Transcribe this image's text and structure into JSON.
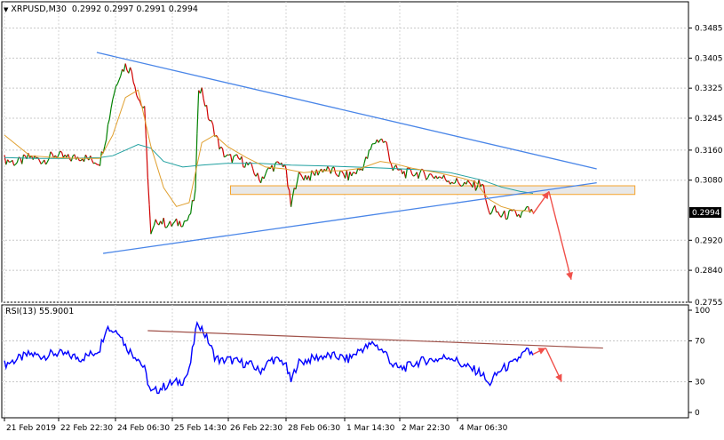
{
  "header": {
    "symbol_timeframe": "XRPUSD,M30",
    "ohlc": "0.2992 0.2997 0.2991 0.2994"
  },
  "rsi_header": {
    "label": "RSI(13) 55.9001"
  },
  "chart_data": [
    {
      "type": "candlestick",
      "title": "XRPUSD,M30",
      "ylim": [
        0.2755,
        0.3555
      ],
      "y_ticks": [
        "0.3485",
        "0.3405",
        "0.3325",
        "0.3245",
        "0.3160",
        "0.3080",
        "0.2994",
        "0.2920",
        "0.2840",
        "0.2755"
      ],
      "last_price": "0.2994",
      "grid": true,
      "colors": {
        "up": "#008000",
        "down": "#d00000",
        "ma_fast": "#e0a030",
        "ma_slow": "#20a0a0",
        "trendline": "#4a86e8",
        "forecast": "#f0504a",
        "zone": "#f6a32a"
      },
      "price_path": [
        [
          0,
          0.3135
        ],
        [
          4,
          0.3126
        ],
        [
          8,
          0.3142
        ],
        [
          12,
          0.3132
        ],
        [
          16,
          0.3148
        ],
        [
          20,
          0.3137
        ],
        [
          24,
          0.3143
        ],
        [
          28,
          0.3132
        ],
        [
          30,
          0.313
        ],
        [
          32,
          0.32
        ],
        [
          34,
          0.33
        ],
        [
          36,
          0.336
        ],
        [
          38,
          0.3385
        ],
        [
          40,
          0.337
        ],
        [
          42,
          0.33
        ],
        [
          44,
          0.3265
        ],
        [
          46,
          0.293
        ],
        [
          48,
          0.2975
        ],
        [
          52,
          0.296
        ],
        [
          56,
          0.297
        ],
        [
          58,
          0.2975
        ],
        [
          60,
          0.305
        ],
        [
          61,
          0.333
        ],
        [
          62,
          0.332
        ],
        [
          64,
          0.325
        ],
        [
          66,
          0.321
        ],
        [
          68,
          0.316
        ],
        [
          70,
          0.314
        ],
        [
          74,
          0.3135
        ],
        [
          78,
          0.311
        ],
        [
          80,
          0.308
        ],
        [
          84,
          0.3115
        ],
        [
          88,
          0.3125
        ],
        [
          90,
          0.301
        ],
        [
          92,
          0.309
        ],
        [
          96,
          0.309
        ],
        [
          100,
          0.311
        ],
        [
          104,
          0.31
        ],
        [
          108,
          0.309
        ],
        [
          112,
          0.311
        ],
        [
          114,
          0.314
        ],
        [
          116,
          0.318
        ],
        [
          118,
          0.319
        ],
        [
          120,
          0.3175
        ],
        [
          122,
          0.311
        ],
        [
          124,
          0.3105
        ],
        [
          126,
          0.3098
        ],
        [
          128,
          0.31
        ],
        [
          132,
          0.3095
        ],
        [
          136,
          0.309
        ],
        [
          140,
          0.308
        ],
        [
          144,
          0.307
        ],
        [
          148,
          0.3065
        ],
        [
          150,
          0.3075
        ],
        [
          152,
          0.2995
        ],
        [
          154,
          0.3
        ],
        [
          156,
          0.2985
        ],
        [
          160,
          0.299
        ],
        [
          162,
          0.2985
        ],
        [
          164,
          0.3
        ],
        [
          166,
          0.2994
        ]
      ],
      "ma_fast": [
        [
          0,
          0.32
        ],
        [
          8,
          0.3145
        ],
        [
          16,
          0.314
        ],
        [
          24,
          0.3138
        ],
        [
          30,
          0.3138
        ],
        [
          34,
          0.32
        ],
        [
          38,
          0.33
        ],
        [
          42,
          0.332
        ],
        [
          46,
          0.317
        ],
        [
          50,
          0.306
        ],
        [
          54,
          0.301
        ],
        [
          58,
          0.302
        ],
        [
          62,
          0.318
        ],
        [
          66,
          0.32
        ],
        [
          70,
          0.317
        ],
        [
          76,
          0.314
        ],
        [
          82,
          0.3115
        ],
        [
          88,
          0.311
        ],
        [
          94,
          0.31
        ],
        [
          100,
          0.3105
        ],
        [
          106,
          0.3105
        ],
        [
          112,
          0.3112
        ],
        [
          118,
          0.313
        ],
        [
          122,
          0.3125
        ],
        [
          128,
          0.3112
        ],
        [
          136,
          0.31
        ],
        [
          144,
          0.3085
        ],
        [
          148,
          0.3075
        ],
        [
          152,
          0.303
        ],
        [
          156,
          0.301
        ],
        [
          160,
          0.3
        ],
        [
          164,
          0.2998
        ],
        [
          166,
          0.2997
        ]
      ],
      "ma_slow": [
        [
          0,
          0.314
        ],
        [
          10,
          0.3138
        ],
        [
          20,
          0.3138
        ],
        [
          30,
          0.314
        ],
        [
          34,
          0.3145
        ],
        [
          38,
          0.316
        ],
        [
          42,
          0.3175
        ],
        [
          46,
          0.3165
        ],
        [
          50,
          0.313
        ],
        [
          56,
          0.3115
        ],
        [
          62,
          0.312
        ],
        [
          70,
          0.3125
        ],
        [
          80,
          0.3125
        ],
        [
          90,
          0.312
        ],
        [
          100,
          0.3118
        ],
        [
          110,
          0.3115
        ],
        [
          120,
          0.3112
        ],
        [
          130,
          0.3108
        ],
        [
          140,
          0.31
        ],
        [
          150,
          0.308
        ],
        [
          156,
          0.3062
        ],
        [
          162,
          0.305
        ],
        [
          166,
          0.3045
        ]
      ],
      "trendlines": [
        {
          "name": "upper",
          "from": [
            29,
            0.342
          ],
          "to": [
            186,
            0.311
          ]
        },
        {
          "name": "lower",
          "from": [
            31,
            0.2885
          ],
          "to": [
            186,
            0.3073
          ]
        }
      ],
      "zone": {
        "x_from": 71,
        "x_to": 198,
        "y_from": 0.3065,
        "y_to": 0.3042
      },
      "forecast_arrows": [
        {
          "from": [
            166,
            0.299
          ],
          "to": [
            171,
            0.305
          ]
        },
        {
          "from": [
            171,
            0.305
          ],
          "to": [
            178,
            0.2815
          ]
        }
      ]
    },
    {
      "type": "line",
      "title": "RSI(13) 55.9001",
      "ylim": [
        0,
        100
      ],
      "y_ticks": [
        "100",
        "70",
        "30",
        "0"
      ],
      "levels": [
        70,
        30
      ],
      "rsi_path": [
        [
          0,
          47
        ],
        [
          4,
          52
        ],
        [
          8,
          57
        ],
        [
          12,
          55
        ],
        [
          16,
          58
        ],
        [
          20,
          56
        ],
        [
          24,
          53
        ],
        [
          28,
          58
        ],
        [
          30,
          63
        ],
        [
          32,
          84
        ],
        [
          34,
          80
        ],
        [
          36,
          80
        ],
        [
          38,
          65
        ],
        [
          40,
          58
        ],
        [
          42,
          53
        ],
        [
          44,
          42
        ],
        [
          46,
          19
        ],
        [
          48,
          22
        ],
        [
          52,
          28
        ],
        [
          56,
          31
        ],
        [
          58,
          40
        ],
        [
          60,
          79
        ],
        [
          61,
          88
        ],
        [
          62,
          82
        ],
        [
          64,
          70
        ],
        [
          66,
          55
        ],
        [
          68,
          50
        ],
        [
          70,
          52
        ],
        [
          74,
          49
        ],
        [
          78,
          46
        ],
        [
          80,
          40
        ],
        [
          84,
          52
        ],
        [
          88,
          49
        ],
        [
          90,
          30
        ],
        [
          92,
          48
        ],
        [
          96,
          52
        ],
        [
          100,
          55
        ],
        [
          104,
          55
        ],
        [
          108,
          52
        ],
        [
          112,
          62
        ],
        [
          114,
          64
        ],
        [
          116,
          68
        ],
        [
          118,
          62
        ],
        [
          120,
          57
        ],
        [
          122,
          46
        ],
        [
          124,
          43
        ],
        [
          126,
          44
        ],
        [
          128,
          47
        ],
        [
          132,
          51
        ],
        [
          136,
          52
        ],
        [
          140,
          55
        ],
        [
          144,
          46
        ],
        [
          148,
          41
        ],
        [
          150,
          38
        ],
        [
          152,
          27
        ],
        [
          154,
          35
        ],
        [
          156,
          42
        ],
        [
          160,
          48
        ],
        [
          162,
          55
        ],
        [
          164,
          60
        ],
        [
          166,
          56
        ]
      ],
      "trendline": {
        "from": [
          45,
          80
        ],
        "to": [
          188,
          63
        ]
      },
      "forecast_arrows": [
        {
          "from": [
            166,
            57
          ],
          "to": [
            170,
            63
          ]
        },
        {
          "from": [
            170,
            63
          ],
          "to": [
            175,
            30
          ]
        }
      ],
      "x_ticks": [
        "21 Feb 2019",
        "22 Feb 22:30",
        "24 Feb 06:30",
        "25 Feb 14:30",
        "26 Feb 22:30",
        "28 Feb 06:30",
        "1 Mar 14:30",
        "2 Mar 22:30",
        "4 Mar 06:30"
      ]
    }
  ]
}
